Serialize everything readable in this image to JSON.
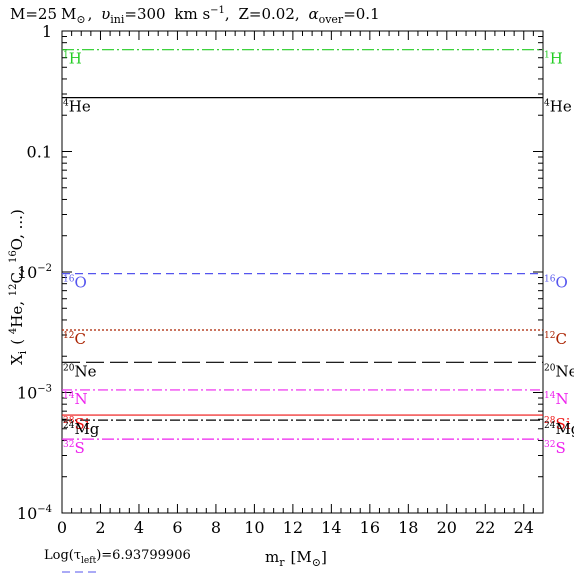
{
  "title": {
    "mass": "M=25",
    "mass_unit": "M",
    "vini_symbol": "υ",
    "vini_sub": "ini",
    "vini_value": "=300",
    "vini_unit": "km s",
    "vini_exp": "−1",
    "metallicity": "Z=0.02",
    "alpha_symbol": "α",
    "alpha_sub": "over",
    "alpha_value": "=0.1"
  },
  "footer": {
    "prefix": "Log(τ",
    "sub": "left",
    "value": ")=6.93799906"
  },
  "chart_data": {
    "type": "line",
    "xlabel": "m",
    "xlabel_sub": "r",
    "xlabel_unit": "[M",
    "xlabel_close": "]",
    "ylabel": "X",
    "ylabel_sub": "i",
    "ylabel_paren": "(",
    "ylabel_list": [
      {
        "mass": "4",
        "el": "He, "
      },
      {
        "mass": "12",
        "el": "C, "
      },
      {
        "mass": "16",
        "el": "O, ...)"
      }
    ],
    "xlim": [
      0,
      25
    ],
    "ylim": [
      0.0001,
      1
    ],
    "yscale": "log",
    "xticks": [
      0,
      2,
      4,
      6,
      8,
      10,
      12,
      14,
      16,
      18,
      20,
      22,
      24
    ],
    "yticks": [
      {
        "value": 1,
        "base": "1",
        "exp": ""
      },
      {
        "value": 0.1,
        "base": "0.1",
        "exp": ""
      },
      {
        "value": 0.01,
        "base": "10",
        "exp": "−2"
      },
      {
        "value": 0.001,
        "base": "10",
        "exp": "−3"
      },
      {
        "value": 0.0001,
        "base": "10",
        "exp": "−4"
      }
    ],
    "series": [
      {
        "name": "1H",
        "mass": "1",
        "el": "H",
        "value": 0.7,
        "color": "#22cc22",
        "dash": "12,3,2,3"
      },
      {
        "name": "4He",
        "mass": "4",
        "el": "He",
        "value": 0.28,
        "color": "#000000",
        "dash": ""
      },
      {
        "name": "16O",
        "mass": "16",
        "el": "O",
        "value": 0.0097,
        "color": "#5555ee",
        "dash": "8,5"
      },
      {
        "name": "12C",
        "mass": "12",
        "el": "C",
        "value": 0.0033,
        "color": "#aa2200",
        "dash": "2,2"
      },
      {
        "name": "20Ne",
        "mass": "20",
        "el": "Ne",
        "value": 0.00178,
        "color": "#000000",
        "dash": "18,6"
      },
      {
        "name": "14N",
        "mass": "14",
        "el": "N",
        "value": 0.00105,
        "color": "#ee22ee",
        "dash": "10,3,2,3"
      },
      {
        "name": "28Si",
        "mass": "28",
        "el": "Si",
        "value": 0.00065,
        "color": "#ee1111",
        "dash": ""
      },
      {
        "name": "24Mg",
        "mass": "24",
        "el": "Mg",
        "value": 0.00059,
        "color": "#000000",
        "dash": "10,3,2,3"
      },
      {
        "name": "32S",
        "mass": "32",
        "el": "S",
        "value": 0.00041,
        "color": "#ee22ee",
        "dash": "12,3,2,3"
      }
    ]
  }
}
